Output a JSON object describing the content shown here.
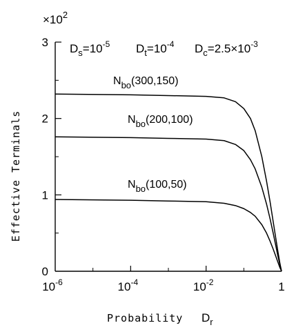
{
  "chart_data": {
    "type": "line",
    "x_scale": "log",
    "xlim": [
      1e-06,
      1
    ],
    "ylim": [
      0,
      3
    ],
    "y_multiplier_label": "×10",
    "y_multiplier_exp": "2",
    "xlabel": "Probability",
    "xlabel_symbol": "D",
    "xlabel_symbol_sub": "r",
    "ylabel": "Effective   Terminals",
    "x_ticks": [
      {
        "value": 1e-06,
        "base": "10",
        "exp": "-6"
      },
      {
        "value": 0.0001,
        "base": "10",
        "exp": "-4"
      },
      {
        "value": 0.01,
        "base": "10",
        "exp": "-2"
      },
      {
        "value": 1,
        "base": "1",
        "exp": ""
      }
    ],
    "y_ticks": [
      {
        "value": 0,
        "label": "0"
      },
      {
        "value": 1,
        "label": "1"
      },
      {
        "value": 2,
        "label": "2"
      },
      {
        "value": 3,
        "label": "3"
      }
    ],
    "params": {
      "ds": {
        "symbol": "D",
        "sub": "s",
        "eq": "=10",
        "exp": "-5"
      },
      "dt": {
        "symbol": "D",
        "sub": "t",
        "eq": "=10",
        "exp": "-4"
      },
      "dc": {
        "symbol": "D",
        "sub": "c",
        "eq": "=2.5×10",
        "exp": "-3"
      }
    },
    "series": [
      {
        "name": "N_bo(300,150)",
        "symbol": "N",
        "sub": "bo",
        "args": "(300,150)",
        "x": [
          1e-06,
          0.0001,
          0.001,
          0.01,
          0.03,
          0.06,
          0.1,
          0.15,
          0.2,
          0.3,
          0.4,
          0.5,
          0.6,
          0.7,
          0.8,
          0.9,
          1
        ],
        "y": [
          2.32,
          2.31,
          2.3,
          2.29,
          2.27,
          2.22,
          2.13,
          2.0,
          1.84,
          1.5,
          1.18,
          0.9,
          0.65,
          0.44,
          0.26,
          0.11,
          0.0
        ]
      },
      {
        "name": "N_bo(200,100)",
        "symbol": "N",
        "sub": "bo",
        "args": "(200,100)",
        "x": [
          1e-06,
          0.0001,
          0.001,
          0.01,
          0.03,
          0.06,
          0.1,
          0.15,
          0.2,
          0.3,
          0.4,
          0.5,
          0.6,
          0.7,
          0.8,
          0.9,
          1
        ],
        "y": [
          1.76,
          1.75,
          1.74,
          1.73,
          1.71,
          1.66,
          1.58,
          1.46,
          1.34,
          1.1,
          0.88,
          0.68,
          0.5,
          0.34,
          0.2,
          0.09,
          0.0
        ]
      },
      {
        "name": "N_bo(100,50)",
        "symbol": "N",
        "sub": "bo",
        "args": "(100,50)",
        "x": [
          1e-06,
          0.0001,
          0.001,
          0.01,
          0.03,
          0.06,
          0.1,
          0.15,
          0.2,
          0.3,
          0.4,
          0.5,
          0.6,
          0.7,
          0.8,
          0.9,
          1
        ],
        "y": [
          0.94,
          0.93,
          0.92,
          0.91,
          0.89,
          0.86,
          0.82,
          0.77,
          0.72,
          0.61,
          0.5,
          0.39,
          0.29,
          0.2,
          0.12,
          0.05,
          0.0
        ]
      }
    ]
  }
}
